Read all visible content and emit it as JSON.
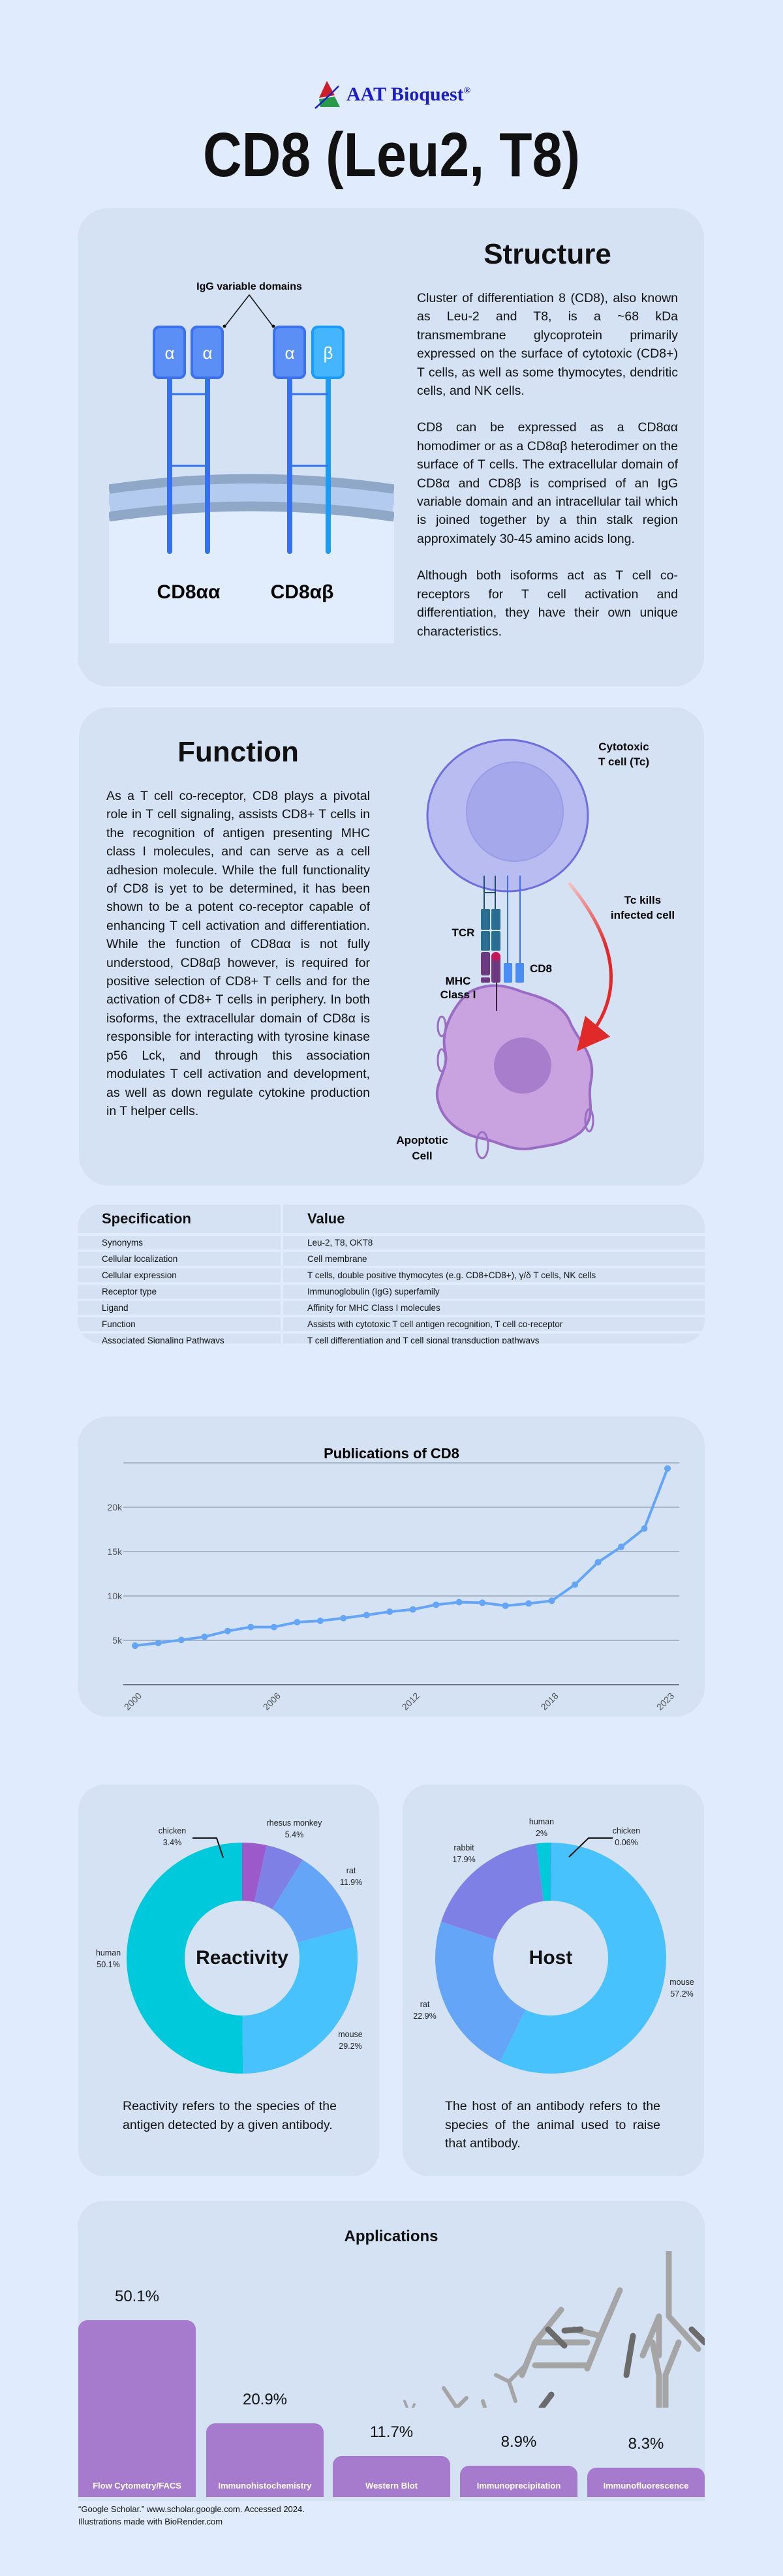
{
  "header": {
    "logo": "AAT Bioquest",
    "logo_mark": "®",
    "title": "CD8 (Leu2, T8)"
  },
  "structure": {
    "heading": "Structure",
    "paragraphs": [
      "Cluster of differentiation 8 (CD8), also known as Leu-2 and T8, is a ~68 kDa transmembrane glycoprotein primarily expressed on the surface of cytotoxic (CD8+) T cells, as well as some thymocytes, dendritic cells, and NK cells.",
      "CD8 can be expressed as a CD8αα homodimer or as a CD8αβ heterodimer on the surface of T cells. The extracellular domain of CD8α and CD8β is comprised of an IgG variable domain and an intracellular tail which is joined together by a thin stalk region approximately 30-45 amino acids long.",
      "Although both isoforms act as T cell co-receptors for T cell activation and differentiation, they have their own unique characteristics."
    ],
    "diagram": {
      "domains_label": "IgG variable domains",
      "alpha": "α",
      "beta": "β",
      "isoform1": "CD8αα",
      "isoform2": "CD8αβ"
    }
  },
  "function": {
    "heading": "Function",
    "text": "As a T cell co-receptor, CD8 plays a pivotal role in T cell signaling, assists CD8+ T cells in the recognition of antigen presenting MHC class I molecules, and can serve as a cell adhesion molecule. While the full functionality of CD8 is yet to be determined, it has been shown to be a potent co-receptor capable of enhancing T cell activation and differentiation. While the function of CD8αα is not fully understood, CD8αβ however, is required for positive selection of CD8+ T cells and for the activation of CD8+ T cells in periphery. In both isoforms, the extracellular domain of CD8α is responsible for interacting with tyrosine kinase p56 Lck, and through this association modulates T cell activation and development, as well as down regulate cytokine production in T helper cells.",
    "diagram": {
      "tcell_1": "Cytotoxic",
      "tcell_2": "T cell (Tc)",
      "kills_1": "Tc kills",
      "kills_2": "infected cell",
      "tcr": "TCR",
      "cd8": "CD8",
      "mhc_1": "MHC",
      "mhc_2": "Class I",
      "apop_1": "Apoptotic",
      "apop_2": "Cell"
    }
  },
  "spec_table": {
    "headers": [
      "Specification",
      "Value"
    ],
    "rows": [
      [
        "Synonyms",
        "Leu-2, T8, OKT8"
      ],
      [
        "Cellular localization",
        "Cell membrane"
      ],
      [
        "Cellular expression",
        "T cells, double positive thymocytes (e.g. CD8+CD8+), γ/δ T cells, NK cells"
      ],
      [
        "Receptor type",
        "Immunoglobulin (IgG) superfamily"
      ],
      [
        "Ligand",
        "Affinity for MHC Class I molecules"
      ],
      [
        "Function",
        "Assists with cytotoxic T cell antigen recognition, T cell co-receptor"
      ],
      [
        "Associated Signaling Pathways",
        "T cell differentiation and T cell signal transduction pathways"
      ]
    ]
  },
  "chart_data": [
    {
      "type": "line",
      "title": "Publications of CD8",
      "xlabel": "",
      "ylabel": "",
      "x": [
        2000,
        2001,
        2002,
        2003,
        2004,
        2005,
        2006,
        2007,
        2008,
        2009,
        2010,
        2011,
        2012,
        2013,
        2014,
        2015,
        2016,
        2017,
        2018,
        2019,
        2020,
        2021,
        2022,
        2023
      ],
      "values": [
        4400,
        4700,
        5050,
        5400,
        6050,
        6500,
        6500,
        7050,
        7200,
        7500,
        7850,
        8230,
        8480,
        9010,
        9300,
        9240,
        8900,
        9150,
        9460,
        11280,
        13800,
        15540,
        17600,
        24370
      ],
      "xticks": [
        "2000",
        "2006",
        "2012",
        "2018",
        "2023"
      ],
      "yticks": [
        "5k",
        "10k",
        "15k",
        "20k"
      ],
      "ylim": [
        0,
        25000
      ],
      "grid": true,
      "color": "#64a5f7"
    },
    {
      "type": "pie",
      "title": "Reactivity",
      "slices": [
        {
          "label": "chicken",
          "value": 3.4,
          "text": "3.4%",
          "color": "#9b59c9"
        },
        {
          "label": "rhesus monkey",
          "value": 5.4,
          "text": "5.4%",
          "color": "#7f80e6"
        },
        {
          "label": "rat",
          "value": 11.9,
          "text": "11.9%",
          "color": "#64a5f7"
        },
        {
          "label": "mouse",
          "value": 29.2,
          "text": "29.2%",
          "color": "#48c2fd"
        },
        {
          "label": "human",
          "value": 50.1,
          "text": "50.1%",
          "color": "#00c9dc"
        }
      ],
      "description": "Reactivity refers to the species of the antigen detected by a given antibody."
    },
    {
      "type": "pie",
      "title": "Host",
      "slices": [
        {
          "label": "chicken",
          "value": 0.06,
          "text": "0.06%",
          "color": "#9b59c9"
        },
        {
          "label": "mouse",
          "value": 57.2,
          "text": "57.2%",
          "color": "#48c2fd"
        },
        {
          "label": "rat",
          "value": 22.9,
          "text": "22.9%",
          "color": "#64a5f7"
        },
        {
          "label": "rabbit",
          "value": 17.9,
          "text": "17.9%",
          "color": "#7f80e6"
        },
        {
          "label": "human",
          "value": 2,
          "text": "2%",
          "color": "#00c9dc"
        }
      ],
      "description": "The host of an antibody refers to the species of the animal used to raise that antibody."
    },
    {
      "type": "bar",
      "title": "Applications",
      "categories": [
        "Flow Cytometry/FACS",
        "Immunohistochemistry",
        "Western Blot",
        "Immunoprecipitation",
        "Immunofluorescence"
      ],
      "values": [
        50.1,
        20.9,
        11.7,
        8.9,
        8.3
      ],
      "labels": [
        "50.1%",
        "20.9%",
        "11.7%",
        "8.9%",
        "8.3%"
      ],
      "color": "#a67bcd"
    }
  ],
  "footer": {
    "citation": "“Google Scholar.” www.scholar.google.com. Accessed 2024.",
    "credit": "Illustrations made with BioRender.com"
  }
}
